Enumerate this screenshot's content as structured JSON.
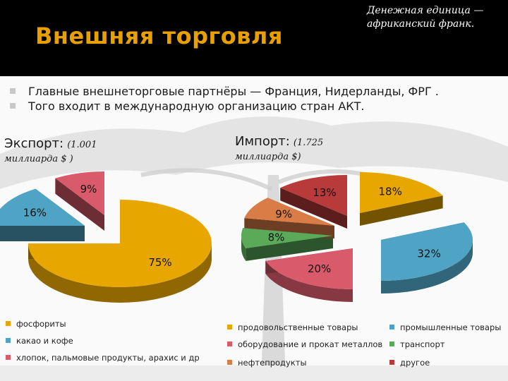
{
  "title": "Внешняя торговля",
  "currency_note": "Денежная единица — африканский франк.",
  "bullets": [
    "Главные внешнеторговые партнёры — Франция, Нидерланды, ФРГ .",
    "Того входит в международную организацию стран АКТ."
  ],
  "export": {
    "label": "Экспорт:",
    "amount": "(1.001",
    "amount_line2": "миллиарда $ )"
  },
  "import": {
    "label": "Импорт:",
    "amount": "(1.725",
    "amount_line2": "миллиарда $)"
  },
  "colors": {
    "orange": "#e8a600",
    "blue": "#4fa3c4",
    "pink": "#d95a6a",
    "green": "#5aaa5a",
    "brown": "#d97c45",
    "darkred": "#b83a3a"
  },
  "chart_data": [
    {
      "type": "pie",
      "title": "Экспорт:",
      "categories": [
        "фосфориты",
        "какао и кофе",
        "хлопок, пальмовые продукты, арахис и др"
      ],
      "values": [
        75,
        16,
        9
      ],
      "labels": [
        "75%",
        "16%",
        "9%"
      ],
      "colors": [
        "#e8a600",
        "#4fa3c4",
        "#d95a6a"
      ]
    },
    {
      "type": "pie",
      "title": "Импорт:",
      "categories": [
        "продовольственные товары",
        "промышленные товары",
        "оборудование и прокат металлов",
        "транспорт",
        "нефтепродукты",
        "другое"
      ],
      "values": [
        18,
        32,
        20,
        8,
        9,
        13
      ],
      "labels": [
        "18%",
        "32%",
        "20%",
        "8%",
        "9%",
        "13%"
      ],
      "colors": [
        "#e8a600",
        "#4fa3c4",
        "#d95a6a",
        "#5aaa5a",
        "#d97c45",
        "#b83a3a"
      ]
    }
  ]
}
